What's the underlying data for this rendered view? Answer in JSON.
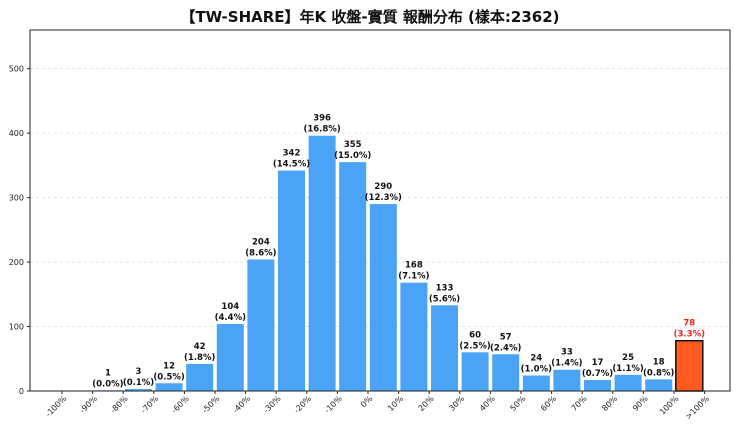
{
  "chart_data": {
    "type": "bar",
    "title": "【TW-SHARE】年K 收盤-實質 報酬分布 (樣本:2362)",
    "xlabel": "",
    "ylabel": "",
    "ylim": [
      0,
      560
    ],
    "yticks": [
      0,
      100,
      200,
      300,
      400,
      500
    ],
    "grid": true,
    "categories": [
      "-100%",
      "-90%",
      "-80%",
      "-70%",
      "-60%",
      "-50%",
      "-40%",
      "-30%",
      "-20%",
      "-10%",
      "0%",
      "10%",
      "20%",
      "30%",
      "40%",
      "50%",
      "60%",
      "70%",
      "80%",
      "90%",
      "100%",
      ">100%"
    ],
    "bars": [
      {
        "bin": "-90%~-80%",
        "value": 1,
        "label": "1",
        "pct": "(0.0%)"
      },
      {
        "bin": "-80%~-70%",
        "value": 3,
        "label": "3",
        "pct": "(0.1%)"
      },
      {
        "bin": "-70%~-60%",
        "value": 12,
        "label": "12",
        "pct": "(0.5%)"
      },
      {
        "bin": "-60%~-50%",
        "value": 42,
        "label": "42",
        "pct": "(1.8%)"
      },
      {
        "bin": "-50%~-40%",
        "value": 104,
        "label": "104",
        "pct": "(4.4%)"
      },
      {
        "bin": "-40%~-30%",
        "value": 204,
        "label": "204",
        "pct": "(8.6%)"
      },
      {
        "bin": "-30%~-20%",
        "value": 342,
        "label": "342",
        "pct": "(14.5%)"
      },
      {
        "bin": "-20%~-10%",
        "value": 396,
        "label": "396",
        "pct": "(16.8%)"
      },
      {
        "bin": "-10%~0%",
        "value": 355,
        "label": "355",
        "pct": "(15.0%)"
      },
      {
        "bin": "0%~10%",
        "value": 290,
        "label": "290",
        "pct": "(12.3%)"
      },
      {
        "bin": "10%~20%",
        "value": 168,
        "label": "168",
        "pct": "(7.1%)"
      },
      {
        "bin": "20%~30%",
        "value": 133,
        "label": "133",
        "pct": "(5.6%)"
      },
      {
        "bin": "30%~40%",
        "value": 60,
        "label": "60",
        "pct": "(2.5%)"
      },
      {
        "bin": "40%~50%",
        "value": 57,
        "label": "57",
        "pct": "(2.4%)"
      },
      {
        "bin": "50%~60%",
        "value": 24,
        "label": "24",
        "pct": "(1.0%)"
      },
      {
        "bin": "60%~70%",
        "value": 33,
        "label": "33",
        "pct": "(1.4%)"
      },
      {
        "bin": "70%~80%",
        "value": 17,
        "label": "17",
        "pct": "(0.7%)"
      },
      {
        "bin": "80%~90%",
        "value": 25,
        "label": "25",
        "pct": "(1.1%)"
      },
      {
        "bin": "90%~100%",
        "value": 18,
        "label": "18",
        "pct": "(0.8%)"
      },
      {
        "bin": ">100%",
        "value": 78,
        "label": "78",
        "pct": "(3.3%)",
        "highlight": true
      }
    ],
    "colors": {
      "bar": "#4aa3f5",
      "highlight": "#ff5a1f",
      "highlight_label": "#e8281e",
      "highlight_edge": "#111111",
      "grid": "#dddddd",
      "axis": "#222222"
    }
  }
}
